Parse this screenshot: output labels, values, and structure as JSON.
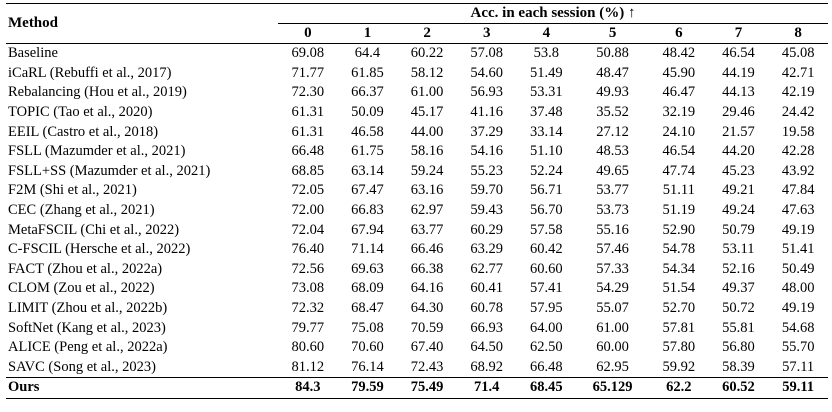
{
  "table": {
    "method_header": "Method",
    "group_header": "Acc. in each session (%) ↑",
    "sessions": [
      "0",
      "1",
      "2",
      "3",
      "4",
      "5",
      "6",
      "7",
      "8"
    ],
    "rows": [
      {
        "method": "Baseline",
        "values": [
          "69.08",
          "64.4",
          "60.22",
          "57.08",
          "53.8",
          "50.88",
          "48.42",
          "46.54",
          "45.08"
        ]
      },
      {
        "method": "iCaRL (Rebuffi et al., 2017)",
        "values": [
          "71.77",
          "61.85",
          "58.12",
          "54.60",
          "51.49",
          "48.47",
          "45.90",
          "44.19",
          "42.71"
        ]
      },
      {
        "method": "Rebalancing (Hou et al., 2019)",
        "values": [
          "72.30",
          "66.37",
          "61.00",
          "56.93",
          "53.31",
          "49.93",
          "46.47",
          "44.13",
          "42.19"
        ]
      },
      {
        "method": "TOPIC (Tao et al., 2020)",
        "values": [
          "61.31",
          "50.09",
          "45.17",
          "41.16",
          "37.48",
          "35.52",
          "32.19",
          "29.46",
          "24.42"
        ]
      },
      {
        "method": "EEIL (Castro et al., 2018)",
        "values": [
          "61.31",
          "46.58",
          "44.00",
          "37.29",
          "33.14",
          "27.12",
          "24.10",
          "21.57",
          "19.58"
        ]
      },
      {
        "method": "FSLL (Mazumder et al., 2021)",
        "values": [
          "66.48",
          "61.75",
          "58.16",
          "54.16",
          "51.10",
          "48.53",
          "46.54",
          "44.20",
          "42.28"
        ]
      },
      {
        "method": "FSLL+SS (Mazumder et al., 2021)",
        "values": [
          "68.85",
          "63.14",
          "59.24",
          "55.23",
          "52.24",
          "49.65",
          "47.74",
          "45.23",
          "43.92"
        ]
      },
      {
        "method": "F2M (Shi et al., 2021)",
        "values": [
          "72.05",
          "67.47",
          "63.16",
          "59.70",
          "56.71",
          "53.77",
          "51.11",
          "49.21",
          "47.84"
        ]
      },
      {
        "method": "CEC (Zhang et al., 2021)",
        "values": [
          "72.00",
          "66.83",
          "62.97",
          "59.43",
          "56.70",
          "53.73",
          "51.19",
          "49.24",
          "47.63"
        ]
      },
      {
        "method": "MetaFSCIL (Chi et al., 2022)",
        "values": [
          "72.04",
          "67.94",
          "63.77",
          "60.29",
          "57.58",
          "55.16",
          "52.90",
          "50.79",
          "49.19"
        ]
      },
      {
        "method": "C-FSCIL (Hersche et al., 2022)",
        "values": [
          "76.40",
          "71.14",
          "66.46",
          "63.29",
          "60.42",
          "57.46",
          "54.78",
          "53.11",
          "51.41"
        ]
      },
      {
        "method": "FACT (Zhou et al., 2022a)",
        "values": [
          "72.56",
          "69.63",
          "66.38",
          "62.77",
          "60.60",
          "57.33",
          "54.34",
          "52.16",
          "50.49"
        ]
      },
      {
        "method": "CLOM (Zou et al., 2022)",
        "values": [
          "73.08",
          "68.09",
          "64.16",
          "60.41",
          "57.41",
          "54.29",
          "51.54",
          "49.37",
          "48.00"
        ]
      },
      {
        "method": "LIMIT (Zhou et al., 2022b)",
        "values": [
          "72.32",
          "68.47",
          "64.30",
          "60.78",
          "57.95",
          "55.07",
          "52.70",
          "50.72",
          "49.19"
        ]
      },
      {
        "method": "SoftNet (Kang et al., 2023)",
        "values": [
          "79.77",
          "75.08",
          "70.59",
          "66.93",
          "64.00",
          "61.00",
          "57.81",
          "55.81",
          "54.68"
        ]
      },
      {
        "method": "ALICE (Peng et al., 2022a)",
        "values": [
          "80.60",
          "70.60",
          "67.40",
          "64.50",
          "62.50",
          "60.00",
          "57.80",
          "56.80",
          "55.70"
        ]
      },
      {
        "method": "SAVC (Song et al., 2023)",
        "values": [
          "81.12",
          "76.14",
          "72.43",
          "68.92",
          "66.48",
          "62.95",
          "59.92",
          "58.39",
          "57.11"
        ]
      }
    ],
    "ours": {
      "method": "Ours",
      "values": [
        "84.3",
        "79.59",
        "75.49",
        "71.4",
        "68.45",
        "65.129",
        "62.2",
        "60.52",
        "59.11"
      ]
    }
  }
}
